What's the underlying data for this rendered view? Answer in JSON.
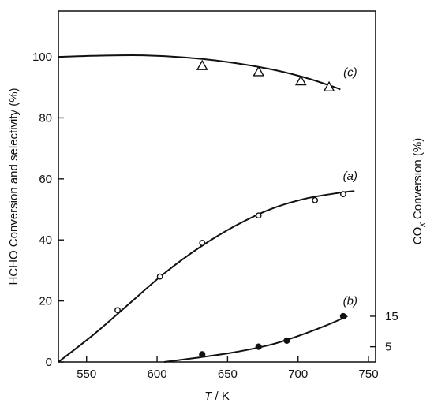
{
  "chart_data": {
    "type": "scatter",
    "title": "",
    "xlabel_italic": "T",
    "xlabel_rest": " / K",
    "ylabel": "HCHO Conversion and selectivity (%)",
    "y2label_main": "CO",
    "y2label_sub": "x",
    "y2label_rest": " Conversion (%)",
    "xlim": [
      530,
      755
    ],
    "ylim": [
      0,
      115
    ],
    "y2_scale": {
      "ref_left_1": 5,
      "ref_right_1": 5,
      "ref_left_2": 15,
      "ref_right_2": 15
    },
    "x_ticks": [
      550,
      600,
      650,
      700,
      750
    ],
    "y_ticks": [
      0,
      20,
      40,
      60,
      80,
      100
    ],
    "y2_ticks": [
      5,
      15
    ],
    "grid": false,
    "series": [
      {
        "label": "(a)",
        "label_at": [
          737,
          61
        ],
        "marker": "circle-open",
        "axis": "left",
        "points": [
          [
            572,
            17
          ],
          [
            602,
            28
          ],
          [
            632,
            39
          ],
          [
            672,
            48
          ],
          [
            712,
            53
          ],
          [
            732,
            55
          ]
        ],
        "fit": [
          [
            530,
            0
          ],
          [
            555,
            9
          ],
          [
            580,
            19
          ],
          [
            605,
            29
          ],
          [
            630,
            37.5
          ],
          [
            655,
            44.5
          ],
          [
            680,
            50
          ],
          [
            705,
            53.5
          ],
          [
            730,
            55.5
          ],
          [
            740,
            56
          ]
        ]
      },
      {
        "label": "(b)",
        "label_at": [
          737,
          20
        ],
        "marker": "circle-filled",
        "axis": "left",
        "points": [
          [
            632,
            2.5
          ],
          [
            672,
            5
          ],
          [
            692,
            7
          ],
          [
            732,
            15
          ]
        ],
        "fit": [
          [
            605,
            0
          ],
          [
            630,
            1.5
          ],
          [
            655,
            3.2
          ],
          [
            680,
            5.6
          ],
          [
            700,
            8.5
          ],
          [
            720,
            12
          ],
          [
            735,
            15
          ]
        ]
      },
      {
        "label": "(c)",
        "label_at": [
          737,
          95
        ],
        "marker": "triangle-open",
        "axis": "left",
        "points": [
          [
            632,
            97
          ],
          [
            672,
            95
          ],
          [
            702,
            92
          ],
          [
            722,
            90
          ]
        ],
        "fit": [
          [
            530,
            100
          ],
          [
            560,
            100.4
          ],
          [
            590,
            100.5
          ],
          [
            620,
            99.8
          ],
          [
            650,
            98.3
          ],
          [
            680,
            96
          ],
          [
            705,
            93.2
          ],
          [
            725,
            90.2
          ],
          [
            730,
            89.3
          ]
        ]
      }
    ]
  }
}
